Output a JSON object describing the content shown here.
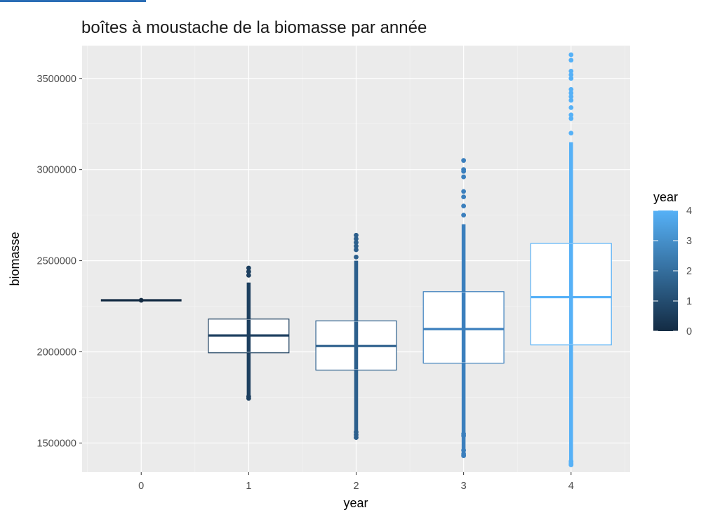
{
  "chart_data": {
    "type": "box",
    "title": "boîtes à moustache de la biomasse par année",
    "xlabel": "year",
    "ylabel": "biomasse",
    "categories": [
      "0",
      "1",
      "2",
      "3",
      "4"
    ],
    "ylim": [
      1340000,
      3680000
    ],
    "xlim": [
      -0.55,
      4.55
    ],
    "yticks": [
      "1500000",
      "2000000",
      "2500000",
      "3000000",
      "3500000"
    ],
    "ytick_values": [
      1500000,
      2000000,
      2500000,
      3000000,
      3500000
    ],
    "grid": true,
    "legend": {
      "title": "year",
      "type": "colorbar",
      "placement": "right",
      "labels": [
        "0",
        "1",
        "2",
        "3",
        "4"
      ],
      "label_values": [
        0,
        1,
        2,
        3,
        4
      ],
      "color_low": "#132b43",
      "color_high": "#56b1f7"
    },
    "boxes": [
      {
        "x": 0,
        "color": "#132b43",
        "q1": 2283000,
        "median": 2283000,
        "q3": 2283000,
        "whisker_low": 2283000,
        "whisker_high": 2283000,
        "outlier_range": [
          2283000,
          2283000
        ],
        "outliers_top": [],
        "outliers_bottom": []
      },
      {
        "x": 1,
        "color": "#1d3f5f",
        "q1": 1995000,
        "median": 2090000,
        "q3": 2180000,
        "whisker_low": 1810000,
        "whisker_high": 2380000,
        "outlier_range": [
          1745000,
          2380000
        ],
        "outliers_top": [
          2420000,
          2440000,
          2460000
        ],
        "outliers_bottom": [
          1745000,
          1755000
        ]
      },
      {
        "x": 2,
        "color": "#2c5f8c",
        "q1": 1900000,
        "median": 2032000,
        "q3": 2170000,
        "whisker_low": 1600000,
        "whisker_high": 2500000,
        "outlier_range": [
          1530000,
          2500000
        ],
        "outliers_top": [
          2520000,
          2560000,
          2580000,
          2600000,
          2620000,
          2640000
        ],
        "outliers_bottom": [
          1530000,
          1545000,
          1560000
        ]
      },
      {
        "x": 3,
        "color": "#3b7fbd",
        "q1": 1938000,
        "median": 2125000,
        "q3": 2330000,
        "whisker_low": 1600000,
        "whisker_high": 2700000,
        "outlier_range": [
          1430000,
          2700000
        ],
        "outliers_top": [
          2750000,
          2800000,
          2850000,
          2880000,
          2960000,
          2990000,
          3000000,
          3050000
        ],
        "outliers_bottom": [
          1430000,
          1440000,
          1460000,
          1540000,
          1550000
        ]
      },
      {
        "x": 4,
        "color": "#56b1f7",
        "q1": 2038000,
        "median": 2300000,
        "q3": 2595000,
        "whisker_low": 1420000,
        "whisker_high": 3150000,
        "outlier_range": [
          1380000,
          3150000
        ],
        "outliers_top": [
          3200000,
          3280000,
          3300000,
          3340000,
          3380000,
          3400000,
          3420000,
          3440000,
          3500000,
          3520000,
          3540000,
          3600000,
          3630000
        ],
        "outliers_bottom": [
          1380000,
          1390000,
          1400000
        ]
      }
    ]
  }
}
